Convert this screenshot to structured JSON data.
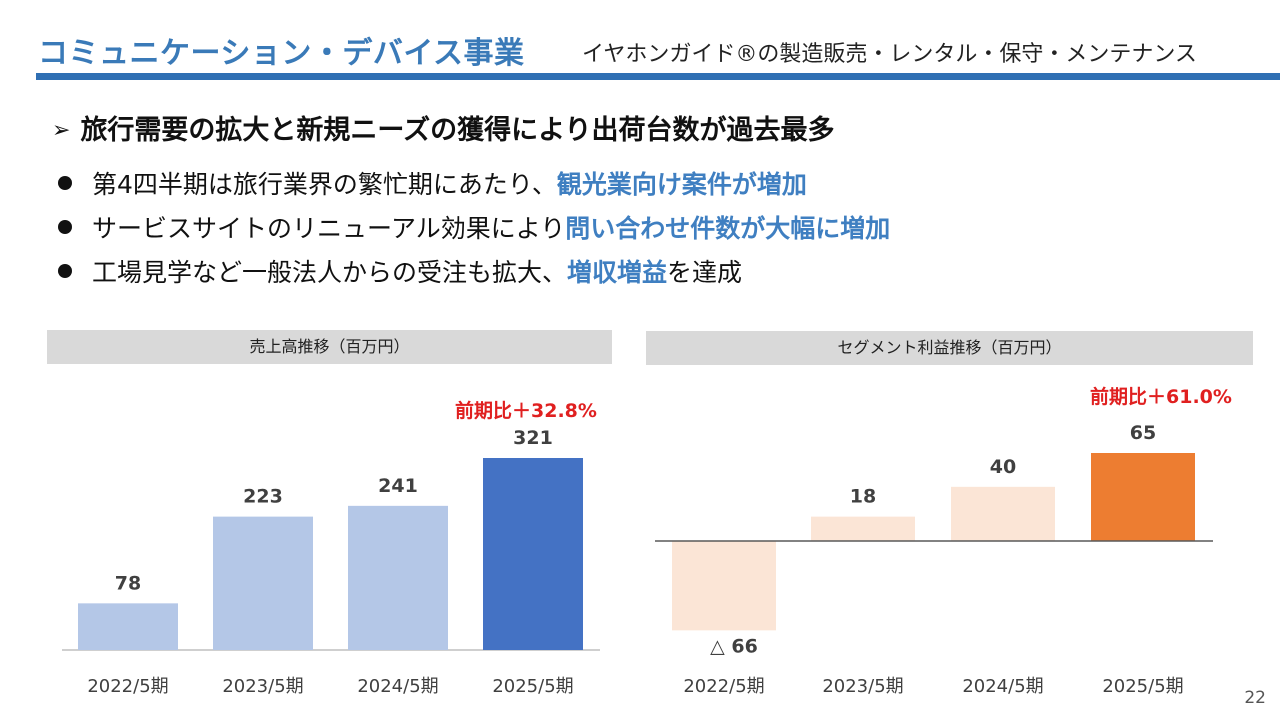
{
  "header": {
    "title": "コミュニケーション・デバイス事業",
    "subtitle": "イヤホンガイド®の製造販売・レンタル・保守・メンテナンス"
  },
  "headline": "旅行需要の拡大と新規ニーズの獲得により出荷台数が過去最多",
  "bullets": [
    {
      "text": "第4四半期は旅行業界の繁忙期にあたり、",
      "highlight": "観光業向け案件が増加",
      "after": ""
    },
    {
      "text": "サービスサイトのリニューアル効果により",
      "highlight": "問い合わせ件数が大幅に増加",
      "after": ""
    },
    {
      "text": "工場見学など一般法人からの受注も拡大、",
      "highlight": "増収増益",
      "after": "を達成"
    }
  ],
  "colors": {
    "title_blue": "#3a7ab8",
    "rule_blue": "#2f6fb3",
    "highlight_blue": "#3f7fc1",
    "sales_bar_light": "#b4c7e7",
    "sales_bar_dark": "#4472c4",
    "profit_bar_light": "#fbe5d6",
    "profit_bar_dark": "#ed7d31",
    "growth_red": "#e02020"
  },
  "page_number": "22",
  "chart_data": [
    {
      "type": "bar",
      "title": "売上高推移（百万円）",
      "annotation": "前期比＋32.8%",
      "categories": [
        "2022/5期",
        "2023/5期",
        "2024/5期",
        "2025/5期"
      ],
      "values": [
        78,
        223,
        241,
        321
      ],
      "value_labels": [
        "78",
        "223",
        "241",
        "321"
      ],
      "ylim": [
        0,
        321
      ],
      "highlight_index": 3,
      "grid": false
    },
    {
      "type": "bar",
      "title": "セグメント利益推移（百万円）",
      "annotation": "前期比＋61.0%",
      "categories": [
        "2022/5期",
        "2023/5期",
        "2024/5期",
        "2025/5期"
      ],
      "values": [
        -66,
        18,
        40,
        65
      ],
      "value_labels": [
        "△ 66",
        "18",
        "40",
        "65"
      ],
      "ylim": [
        -66,
        65
      ],
      "highlight_index": 3,
      "grid": false
    }
  ]
}
